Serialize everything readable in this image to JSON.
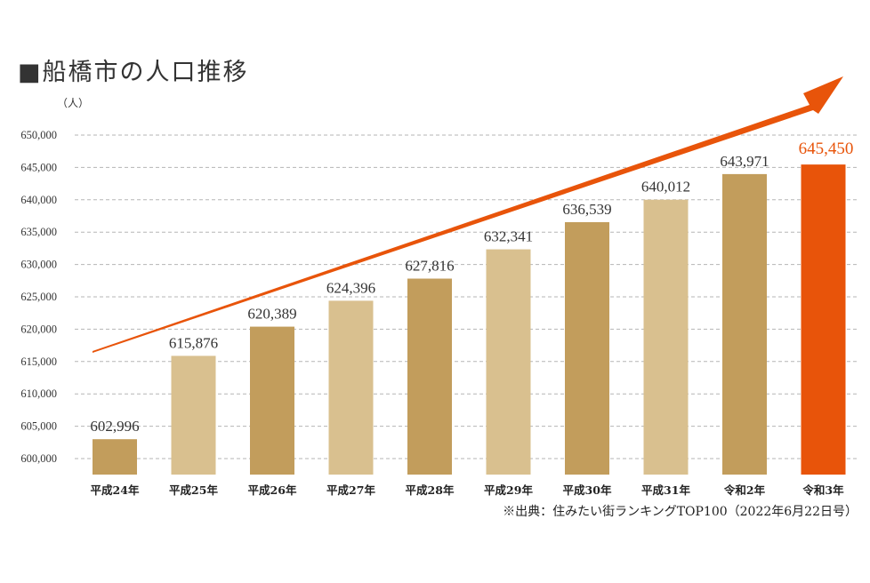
{
  "chart_data": {
    "type": "bar",
    "title": "■船橋市の人口推移",
    "ylabel": "（人）",
    "xlabel": "",
    "categories": [
      "平成24年",
      "平成25年",
      "平成26年",
      "平成27年",
      "平成28年",
      "平成29年",
      "平成30年",
      "平成31年",
      "令和2年",
      "令和3年"
    ],
    "values": [
      602996,
      615876,
      620389,
      624396,
      627816,
      632341,
      636539,
      640012,
      643971,
      645450
    ],
    "value_labels": [
      "602,996",
      "615,876",
      "620,389",
      "624,396",
      "627,816",
      "632,341",
      "636,539",
      "640,012",
      "643,971",
      "645,450"
    ],
    "ylim": [
      597500,
      650000
    ],
    "yticks": [
      600000,
      605000,
      610000,
      615000,
      620000,
      625000,
      630000,
      635000,
      640000,
      645000,
      650000
    ],
    "ytick_labels": [
      "600,000",
      "605,000",
      "610,000",
      "615,000",
      "620,000",
      "625,000",
      "630,000",
      "635,000",
      "640,000",
      "645,000",
      "650,000"
    ],
    "grid": true,
    "bar_colors": [
      "#c29d5c",
      "#d9c08f",
      "#c29d5c",
      "#d9c08f",
      "#c29d5c",
      "#d9c08f",
      "#c29d5c",
      "#d9c08f",
      "#c29d5c",
      "#e8540a"
    ],
    "highlight_color": "#e8540a",
    "trend_arrow": true,
    "source": "※出典：住みたい街ランキングTOP100（2022年6月22日号）"
  }
}
